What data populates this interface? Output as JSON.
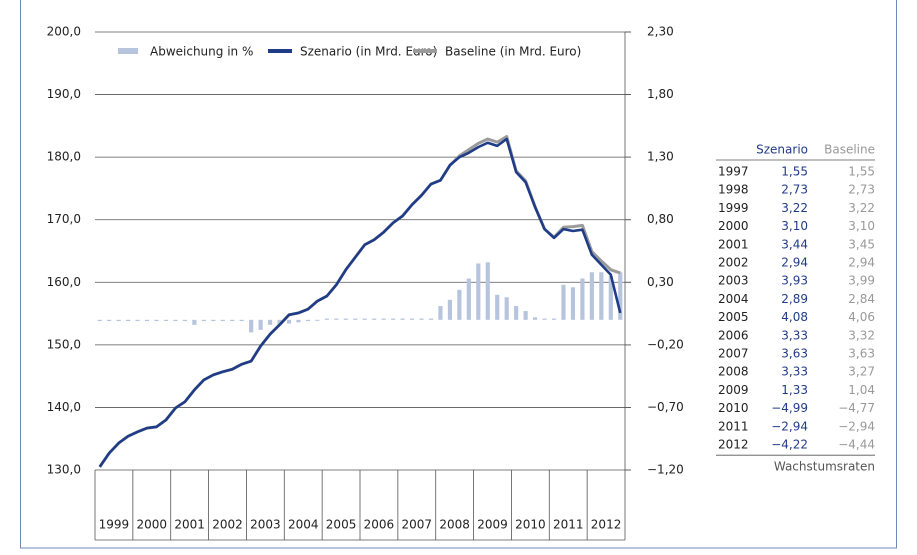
{
  "chart_data": {
    "type": "bar-line",
    "categories": [
      "1999",
      null,
      null,
      null,
      "2000",
      null,
      null,
      null,
      "2001",
      null,
      null,
      null,
      "2002",
      null,
      null,
      null,
      "2003",
      null,
      null,
      null,
      "2004",
      null,
      null,
      null,
      "2005",
      null,
      null,
      null,
      "2006",
      null,
      null,
      null,
      "2007",
      null,
      null,
      null,
      "2008",
      null,
      null,
      null,
      "2009",
      null,
      null,
      null,
      "2010",
      null,
      null,
      null,
      "2011",
      null,
      null,
      null,
      "2012",
      null,
      null,
      null
    ],
    "series": [
      {
        "name": "Abweichung in %",
        "color": "#b7c4de",
        "type": "bar",
        "axis": "y2",
        "values": [
          -0.01,
          -0.01,
          -0.01,
          -0.01,
          -0.01,
          -0.01,
          -0.01,
          -0.01,
          -0.01,
          -0.01,
          -0.04,
          -0.01,
          -0.01,
          -0.01,
          -0.01,
          -0.01,
          -0.1,
          -0.08,
          -0.04,
          -0.04,
          -0.03,
          -0.02,
          -0.01,
          0.0,
          0.01,
          0.01,
          0.01,
          0.01,
          0.01,
          0.01,
          0.01,
          0.01,
          0.01,
          0.01,
          0.01,
          0.01,
          0.11,
          0.16,
          0.24,
          0.33,
          0.45,
          0.46,
          0.2,
          0.18,
          0.11,
          0.07,
          0.02,
          0.01,
          0.01,
          0.28,
          0.26,
          0.33,
          0.38,
          0.38,
          0.35,
          0.38
        ]
      },
      {
        "name": "Szenario (in Mrd. Euro)",
        "color": "#1f3c88",
        "type": "line",
        "values": [
          130.5,
          132.7,
          134.3,
          135.4,
          136.1,
          136.7,
          136.9,
          138.0,
          139.9,
          140.9,
          142.8,
          144.4,
          145.2,
          145.7,
          146.1,
          146.9,
          147.4,
          149.8,
          151.7,
          153.2,
          154.8,
          155.1,
          155.7,
          157.0,
          157.8,
          159.6,
          162.0,
          164.0,
          166.0,
          166.8,
          168.0,
          169.5,
          170.6,
          172.4,
          173.9,
          175.7,
          176.3,
          178.7,
          180.0,
          180.7,
          181.6,
          182.3,
          181.8,
          182.9,
          177.6,
          176.0,
          172.0,
          168.5,
          167.1,
          168.5,
          168.2,
          168.4,
          164.4,
          162.8,
          161.2,
          155.1
        ]
      },
      {
        "name": "Baseline (in Mrd. Euro)",
        "color": "#9b9b9b",
        "type": "line",
        "values": [
          130.5,
          132.7,
          134.3,
          135.4,
          136.1,
          136.7,
          136.9,
          138.0,
          139.9,
          140.9,
          142.8,
          144.4,
          145.2,
          145.7,
          146.1,
          146.9,
          147.4,
          149.8,
          151.7,
          153.2,
          154.8,
          155.1,
          155.7,
          157.0,
          157.8,
          159.6,
          162.0,
          164.0,
          166.0,
          166.8,
          168.0,
          169.5,
          170.6,
          172.4,
          173.9,
          175.7,
          176.3,
          178.7,
          180.2,
          181.2,
          182.2,
          182.9,
          182.4,
          183.3,
          177.8,
          176.2,
          172.1,
          168.5,
          167.2,
          168.8,
          168.9,
          169.1,
          164.9,
          163.4,
          162.0,
          161.5
        ]
      }
    ],
    "ylim": [
      130,
      200
    ],
    "yticks": [
      {
        "value": 130,
        "label": "130,0"
      },
      {
        "value": 140,
        "label": "140,0"
      },
      {
        "value": 150,
        "label": "150,0"
      },
      {
        "value": 160,
        "label": "160,0"
      },
      {
        "value": 170,
        "label": "170,0"
      },
      {
        "value": 180,
        "label": "180,0"
      },
      {
        "value": 190,
        "label": "190,0"
      },
      {
        "value": 200,
        "label": "200,0"
      }
    ],
    "y2lim": [
      -1.2,
      2.3
    ],
    "y2ticks": [
      {
        "value": -1.2,
        "label": "−1,20"
      },
      {
        "value": -0.7,
        "label": "−0,70"
      },
      {
        "value": -0.2,
        "label": "−0,20"
      },
      {
        "value": 0.3,
        "label": "0,30"
      },
      {
        "value": 0.8,
        "label": "0,80"
      },
      {
        "value": 1.3,
        "label": "1,30"
      },
      {
        "value": 1.8,
        "label": "1,80"
      },
      {
        "value": 2.3,
        "label": "2,30"
      }
    ],
    "grid": true,
    "legend": "top"
  },
  "table": {
    "header": [
      "Szenario",
      "Baseline"
    ],
    "rows": [
      [
        "1997",
        "1,55",
        "1,55"
      ],
      [
        "1998",
        "2,73",
        "2,73"
      ],
      [
        "1999",
        "3,22",
        "3,22"
      ],
      [
        "2000",
        "3,10",
        "3,10"
      ],
      [
        "2001",
        "3,44",
        "3,45"
      ],
      [
        "2002",
        "2,94",
        "2,94"
      ],
      [
        "2003",
        "3,93",
        "3,99"
      ],
      [
        "2004",
        "2,89",
        "2,84"
      ],
      [
        "2005",
        "4,08",
        "4,06"
      ],
      [
        "2006",
        "3,33",
        "3,32"
      ],
      [
        "2007",
        "3,63",
        "3,63"
      ],
      [
        "2008",
        "3,33",
        "3,27"
      ],
      [
        "2009",
        "1,33",
        "1,04"
      ],
      [
        "2010",
        "−4,99",
        "−4,77"
      ],
      [
        "2011",
        "−2,94",
        "−2,94"
      ],
      [
        "2012",
        "−4,22",
        "−4,44"
      ]
    ],
    "footer": "Wachstumsraten"
  }
}
